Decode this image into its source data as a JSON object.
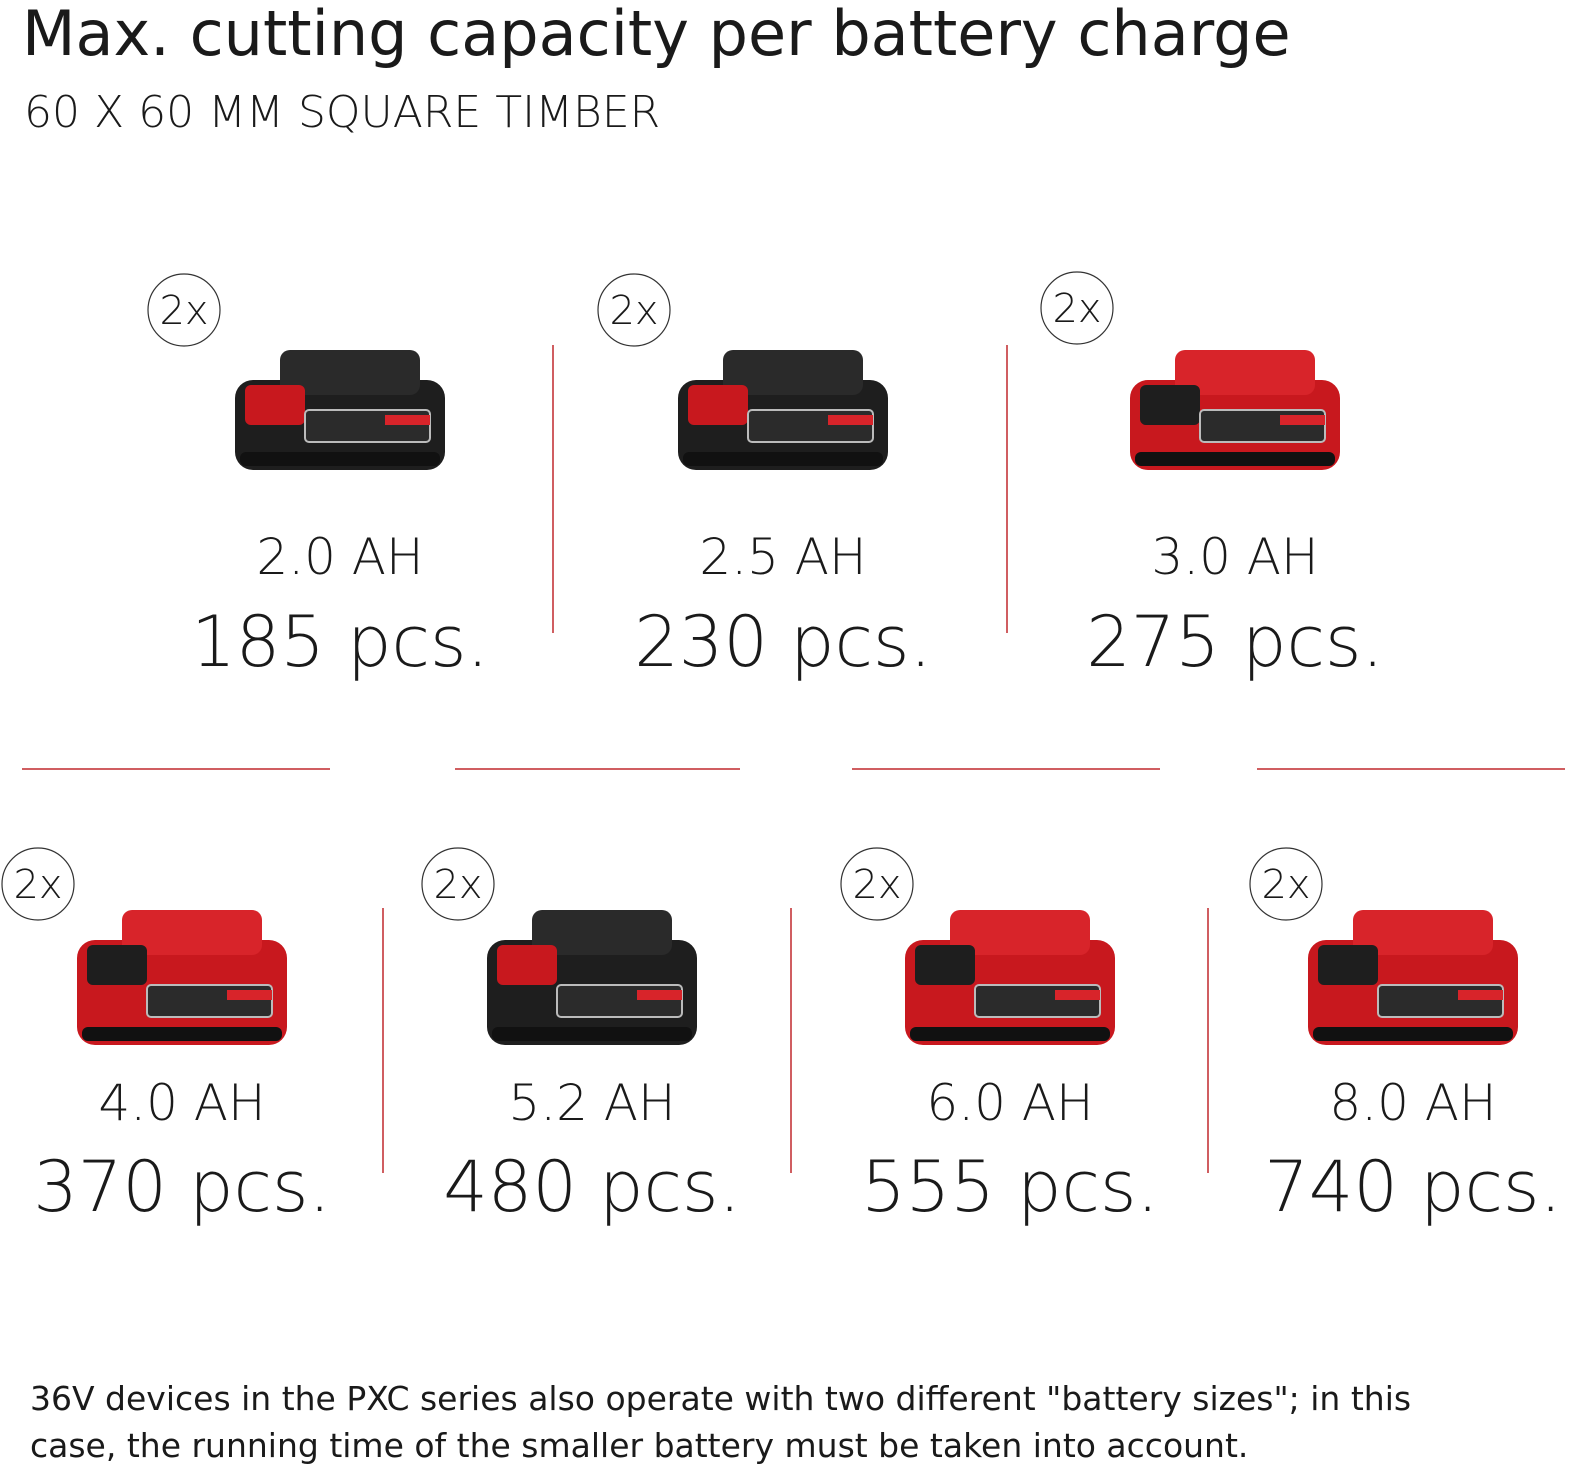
{
  "header": {
    "title": "Max. cutting capacity per battery charge",
    "subtitle": "60 X 60 MM SQUARE TIMBER"
  },
  "batteries": [
    {
      "badge": "2x",
      "capacity": "2.0 AH",
      "result": "185 pcs."
    },
    {
      "badge": "2x",
      "capacity": "2.5 AH",
      "result": "230 pcs."
    },
    {
      "badge": "2x",
      "capacity": "3.0 AH",
      "result": "275 pcs."
    },
    {
      "badge": "2x",
      "capacity": "4.0 AH",
      "result": "370 pcs."
    },
    {
      "badge": "2x",
      "capacity": "5.2 AH",
      "result": "480 pcs."
    },
    {
      "badge": "2x",
      "capacity": "6.0 AH",
      "result": "555 pcs."
    },
    {
      "badge": "2x",
      "capacity": "8.0 AH",
      "result": "740 pcs."
    }
  ],
  "footnote": {
    "lines": [
      "36V devices in the PXC series also operate with two different \"battery sizes\"; in this",
      "case, the running time of the smaller battery must be taken into account."
    ]
  }
}
